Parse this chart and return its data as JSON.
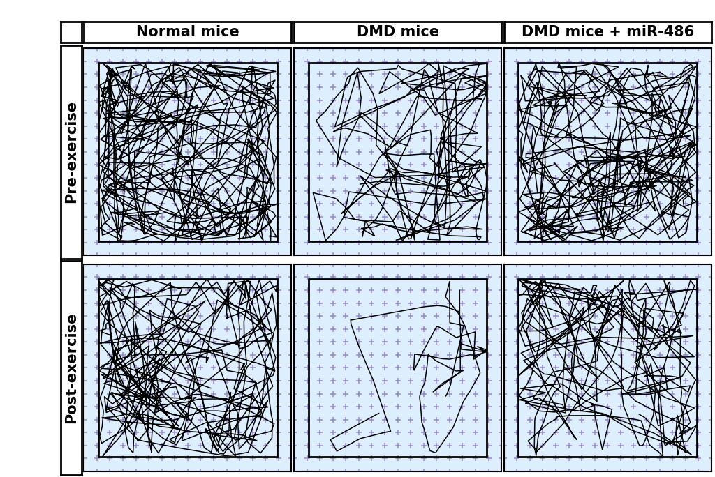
{
  "col_labels": [
    "Normal mice",
    "DMD mice",
    "DMD mice + miR-486"
  ],
  "row_labels": [
    "Pre-exercise",
    "Post-exercise"
  ],
  "bg_color": "#ddeeff",
  "grid_color": "#9988cc",
  "track_color": "#000000",
  "label_fontsize": 15,
  "label_fontweight": "bold",
  "panel_configs": [
    {
      "row": 0,
      "col": 0,
      "n_steps": 900,
      "seed": 101,
      "step_mean": 28,
      "step_max": 80
    },
    {
      "row": 0,
      "col": 1,
      "n_steps": 400,
      "seed": 202,
      "step_mean": 28,
      "step_max": 80
    },
    {
      "row": 0,
      "col": 2,
      "n_steps": 800,
      "seed": 303,
      "step_mean": 28,
      "step_max": 80
    },
    {
      "row": 1,
      "col": 0,
      "n_steps": 700,
      "seed": 404,
      "step_mean": 28,
      "step_max": 80
    },
    {
      "row": 1,
      "col": 1,
      "n_steps": 80,
      "seed": 505,
      "step_mean": 28,
      "step_max": 80
    },
    {
      "row": 1,
      "col": 2,
      "n_steps": 550,
      "seed": 606,
      "step_mean": 28,
      "step_max": 80
    }
  ]
}
